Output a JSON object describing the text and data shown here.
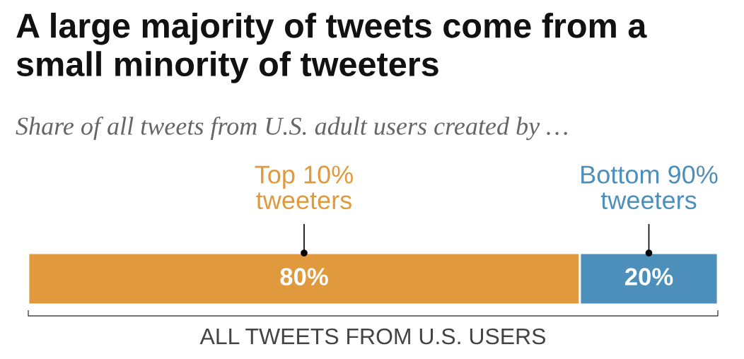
{
  "chart_data": {
    "type": "bar",
    "orientation": "horizontal",
    "stacked": true,
    "title": "A large majority of tweets come from a small minority of tweeters",
    "subtitle": "Share of all tweets from U.S. adult users created by …",
    "categories": [
      null
    ],
    "series": [
      {
        "name": "Top 10%\ntweeters",
        "color": "#e0993c",
        "values": [
          80
        ],
        "value_labels": [
          "80%"
        ]
      },
      {
        "name": "Bottom 90%\ntweeters",
        "color": "#4d8fbb",
        "values": [
          20
        ],
        "value_labels": [
          "20%"
        ]
      }
    ],
    "annotations": [
      "ALL TWEETS FROM U.S. USERS"
    ],
    "legend": false
  }
}
